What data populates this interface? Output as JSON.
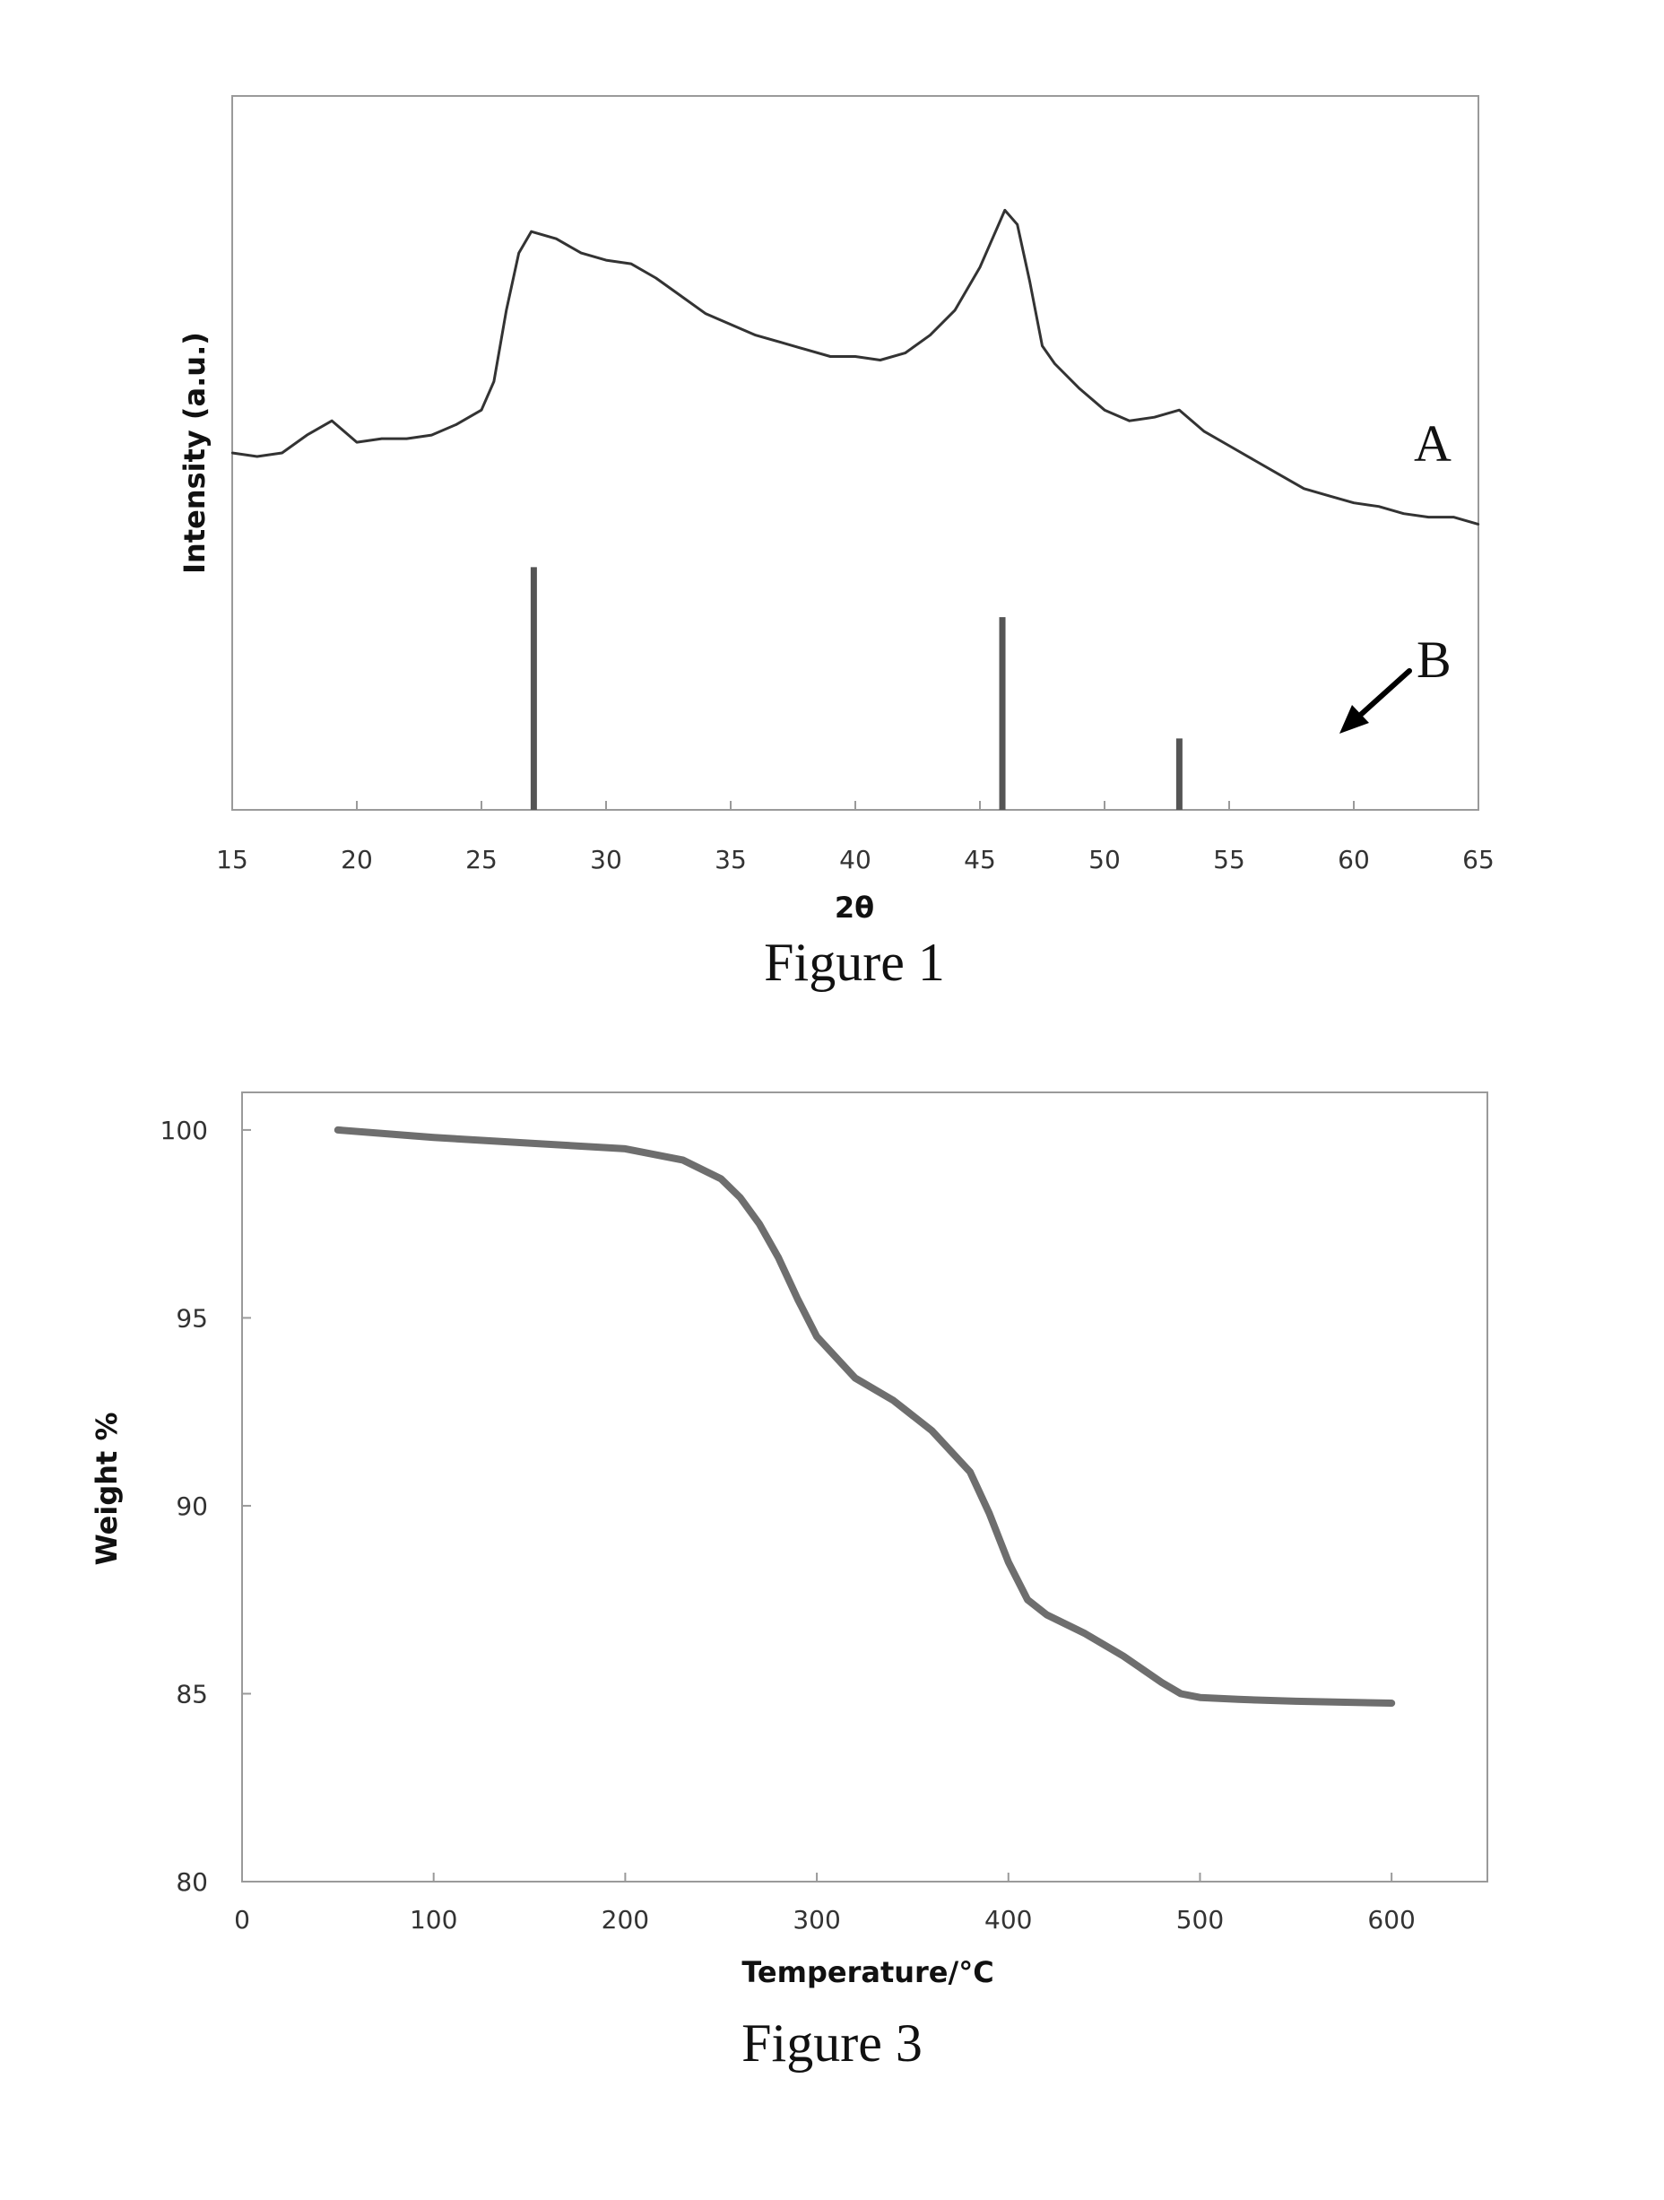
{
  "chart_data": [
    {
      "type": "line",
      "caption": "Figure 1",
      "xlabel": "2θ",
      "ylabel": "Intensity (a.u.)",
      "xlim": [
        15,
        65
      ],
      "xticks": [
        "15",
        "20",
        "25",
        "30",
        "35",
        "40",
        "45",
        "50",
        "55",
        "60",
        "65"
      ],
      "y_scale": "arbitrary units, no tick labels",
      "grid": false,
      "series": [
        {
          "name": "A",
          "kind": "line",
          "x": [
            15,
            16,
            17,
            18,
            19,
            20,
            21,
            22,
            23,
            24,
            25,
            25.5,
            26,
            26.5,
            27,
            28,
            29,
            30,
            31,
            32,
            33,
            34,
            35,
            36,
            37,
            38,
            39,
            40,
            41,
            42,
            43,
            44,
            45,
            45.5,
            46,
            46.5,
            47,
            47.5,
            48,
            49,
            50,
            51,
            52,
            53,
            54,
            55,
            56,
            57,
            58,
            59,
            60,
            61,
            62,
            63,
            64,
            65
          ],
          "y": [
            0.5,
            0.495,
            0.5,
            0.525,
            0.545,
            0.515,
            0.52,
            0.52,
            0.525,
            0.54,
            0.56,
            0.6,
            0.7,
            0.78,
            0.81,
            0.8,
            0.78,
            0.77,
            0.765,
            0.745,
            0.72,
            0.695,
            0.68,
            0.665,
            0.655,
            0.645,
            0.635,
            0.635,
            0.63,
            0.64,
            0.665,
            0.7,
            0.76,
            0.8,
            0.84,
            0.82,
            0.74,
            0.65,
            0.625,
            0.59,
            0.56,
            0.545,
            0.55,
            0.56,
            0.53,
            0.51,
            0.49,
            0.47,
            0.45,
            0.44,
            0.43,
            0.425,
            0.415,
            0.41,
            0.41,
            0.4
          ]
        },
        {
          "name": "B",
          "kind": "stick",
          "x": [
            27.1,
            45.9,
            53.0
          ],
          "y": [
            0.34,
            0.27,
            0.1
          ]
        }
      ]
    },
    {
      "type": "line",
      "caption": "Figure 3",
      "xlabel": "Temperature/°C",
      "ylabel": "Weight %",
      "xlim": [
        0,
        650
      ],
      "ylim": [
        80,
        101
      ],
      "xticks": [
        "0",
        "100",
        "200",
        "300",
        "400",
        "500",
        "600"
      ],
      "yticks": [
        "80",
        "85",
        "90",
        "95",
        "100"
      ],
      "grid": false,
      "series": [
        {
          "x": [
            50,
            100,
            150,
            200,
            230,
            250,
            260,
            270,
            280,
            290,
            300,
            320,
            340,
            360,
            380,
            390,
            400,
            410,
            420,
            440,
            460,
            480,
            490,
            500,
            520,
            550,
            600
          ],
          "y": [
            100.0,
            99.8,
            99.65,
            99.5,
            99.2,
            98.7,
            98.2,
            97.5,
            96.6,
            95.5,
            94.5,
            93.4,
            92.8,
            92.0,
            90.9,
            89.8,
            88.5,
            87.5,
            87.1,
            86.6,
            86.0,
            85.3,
            85.0,
            84.9,
            84.85,
            84.8,
            84.75
          ]
        }
      ]
    }
  ]
}
